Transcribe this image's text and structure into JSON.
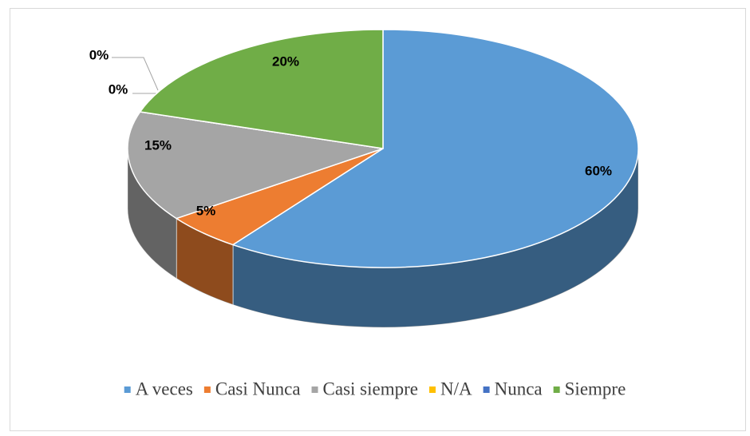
{
  "chart_data": {
    "type": "pie",
    "categories": [
      "A veces",
      "Casi Nunca",
      "Casi siempre",
      "N/A",
      "Nunca",
      "Siempre"
    ],
    "values": [
      60,
      5,
      15,
      0,
      0,
      20
    ],
    "value_labels": [
      "60%",
      "5%",
      "15%",
      "0%",
      "0%",
      "20%"
    ],
    "colors": [
      "#5b9bd5",
      "#ed7d31",
      "#a5a5a5",
      "#ffc000",
      "#4472c4",
      "#70ad47"
    ],
    "legend": "bottom"
  }
}
